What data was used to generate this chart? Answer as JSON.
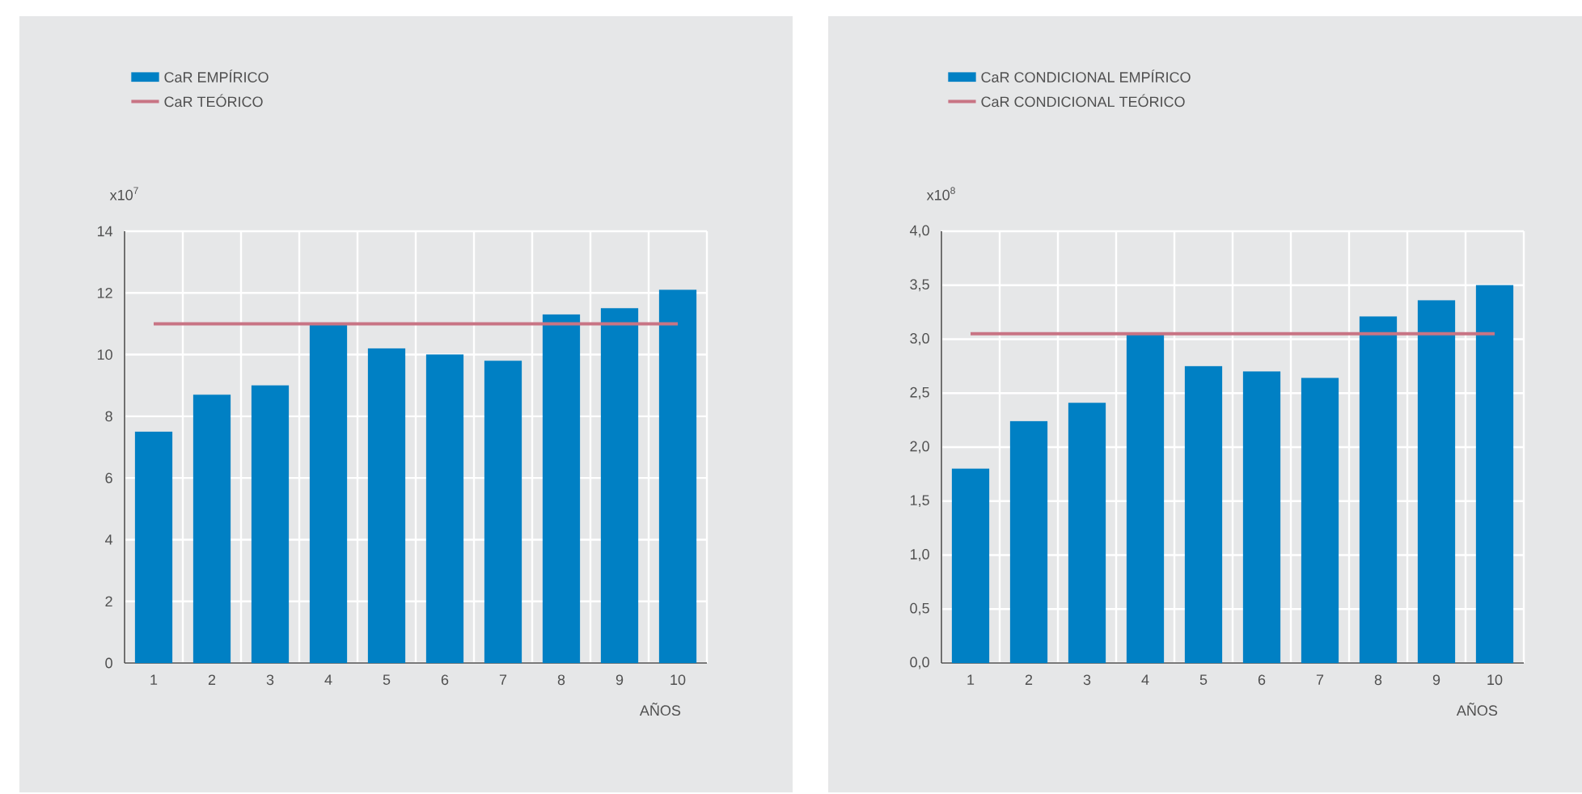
{
  "chart_data": [
    {
      "type": "bar",
      "categories": [
        "1",
        "2",
        "3",
        "4",
        "5",
        "6",
        "7",
        "8",
        "9",
        "10"
      ],
      "xlabel": "AÑOS",
      "ylabel": "x10$^{7}$",
      "ylim": [
        0,
        14
      ],
      "yticks": [
        0,
        2,
        4,
        6,
        8,
        10,
        12,
        14
      ],
      "grid": true,
      "legend": "top left",
      "series": [
        {
          "name": "CaR EMPÍRICO",
          "color": "#0080c4",
          "values": [
            7.5,
            8.7,
            9.0,
            11.0,
            10.2,
            10.0,
            9.8,
            11.3,
            11.5,
            12.1
          ]
        },
        {
          "name": "CaR TEÓRICO",
          "type": "line",
          "color": "#c87484",
          "values": [
            11.0,
            11.0,
            11.0,
            11.0,
            11.0,
            11.0,
            11.0,
            11.0,
            11.0,
            11.0
          ]
        }
      ]
    },
    {
      "type": "bar",
      "categories": [
        "1",
        "2",
        "3",
        "4",
        "5",
        "6",
        "7",
        "8",
        "9",
        "10"
      ],
      "xlabel": "AÑOS",
      "ylabel": "x10$^{8}$",
      "ylim": [
        0,
        4
      ],
      "yticks": [
        {
          "value": 0,
          "label": "0,0"
        },
        {
          "value": 0.5,
          "label": "0,5"
        },
        {
          "value": 1,
          "label": "1,0"
        },
        {
          "value": 1.5,
          "label": "1,5"
        },
        {
          "value": 2,
          "label": "2,0"
        },
        {
          "value": 2.5,
          "label": "2,5"
        },
        {
          "value": 3,
          "label": "3,0"
        },
        {
          "value": 3.5,
          "label": "3,5"
        },
        {
          "value": 4,
          "label": "4,0"
        }
      ],
      "grid": true,
      "legend": "top left",
      "series": [
        {
          "name": "CaR CONDICIONAL EMPÍRICO",
          "color": "#0080c4",
          "values": [
            1.8,
            2.24,
            2.41,
            3.05,
            2.75,
            2.7,
            2.64,
            3.21,
            3.36,
            3.5
          ]
        },
        {
          "name": "CaR CONDICIONAL TEÓRICO",
          "type": "line",
          "color": "#c87484",
          "values": [
            3.05,
            3.05,
            3.05,
            3.05,
            3.05,
            3.05,
            3.05,
            3.05,
            3.05,
            3.05
          ]
        }
      ]
    }
  ]
}
